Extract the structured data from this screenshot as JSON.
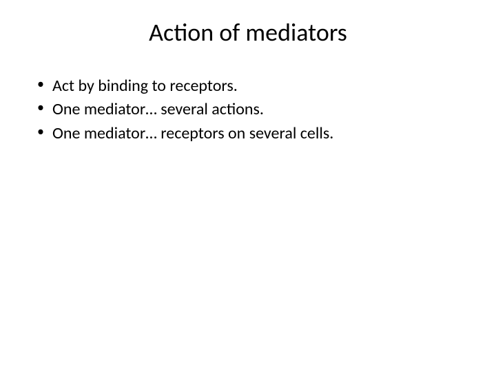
{
  "slide": {
    "title": "Action of mediators",
    "bullets": [
      "Act by binding to receptors.",
      "One mediator… several actions.",
      "One mediator… receptors on several cells."
    ],
    "styling": {
      "background_color": "#ffffff",
      "text_color": "#000000",
      "title_fontsize": 36,
      "bullet_fontsize": 24,
      "font_family": "Calibri"
    }
  }
}
